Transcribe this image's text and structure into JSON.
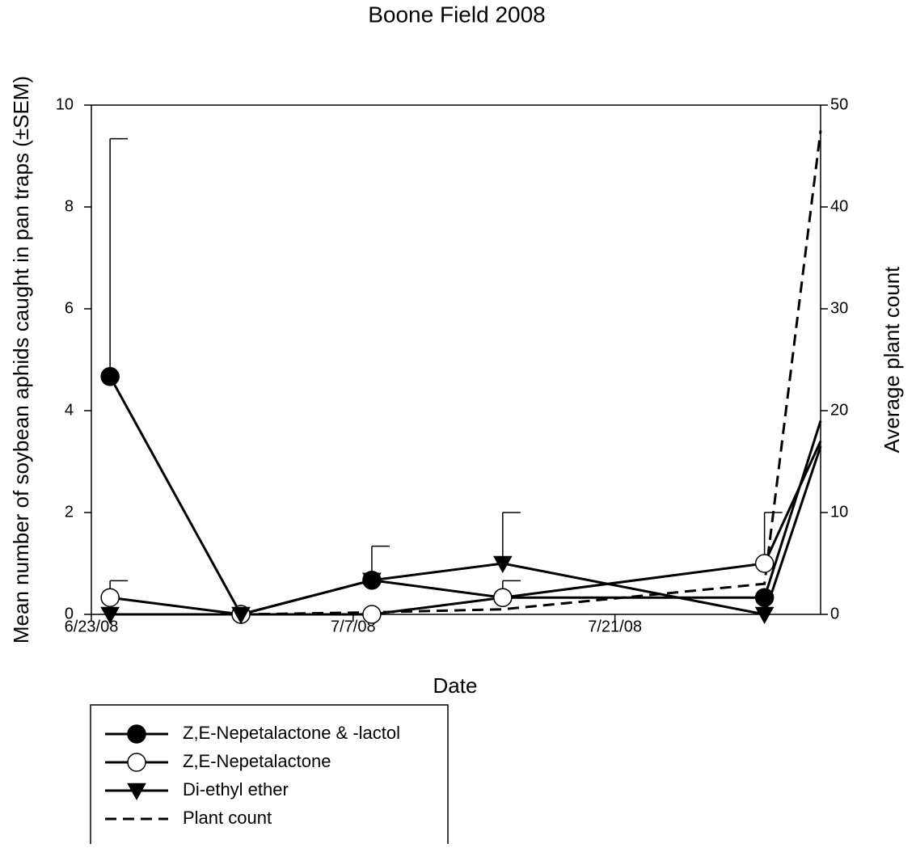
{
  "chart_data": {
    "type": "line",
    "title": "Boone Field 2008",
    "x_label": "Date",
    "y_label": "Mean number of soybean aphids caught in pan traps (±SEM)",
    "y2_label": "Average plant count",
    "x": [
      "2008-06-24",
      "2008-07-01",
      "2008-07-08",
      "2008-07-15",
      "2008-07-29",
      "2008-08-01"
    ],
    "xlim": [
      "2008-06-23",
      "2008-08-01"
    ],
    "xticks": [
      {
        "value": "2008-06-23",
        "label": "6/23/08"
      },
      {
        "value": "2008-07-07",
        "label": "7/7/08"
      },
      {
        "value": "2008-07-21",
        "label": "7/21/08"
      }
    ],
    "ylim": [
      0,
      10
    ],
    "yticks": [
      0,
      2,
      4,
      6,
      8,
      10
    ],
    "y2lim": [
      0,
      50
    ],
    "y2ticks": [
      0,
      10,
      20,
      30,
      40,
      50
    ],
    "series": [
      {
        "name": "Z,E-Nepetalactone & -lactol",
        "color": "#000000",
        "marker": "circle",
        "marker_fill": "#000000",
        "values": [
          4.67,
          0,
          0.67,
          0.33,
          0.33,
          3.8
        ],
        "errors": [
          4.67,
          0,
          0.67,
          0,
          0,
          null
        ]
      },
      {
        "name": "Z,E-Nepetalactone",
        "color": "#000000",
        "marker": "circle",
        "marker_fill": "#ffffff",
        "values": [
          0.33,
          0,
          0,
          0.33,
          1.0,
          3.4
        ],
        "errors": [
          0.33,
          0,
          0,
          0.33,
          1.0,
          null
        ]
      },
      {
        "name": "Di-ethyl ether",
        "color": "#000000",
        "marker": "triangle",
        "marker_fill": "#000000",
        "values": [
          0,
          0,
          0.67,
          1.0,
          0,
          3.3
        ],
        "errors": [
          0,
          0,
          0,
          1.0,
          0,
          null
        ]
      },
      {
        "name": "Plant count",
        "color": "#000000",
        "dashed": true,
        "axis": "y2",
        "values": [
          null,
          0,
          0.2,
          0.5,
          3,
          47.5
        ]
      }
    ]
  }
}
